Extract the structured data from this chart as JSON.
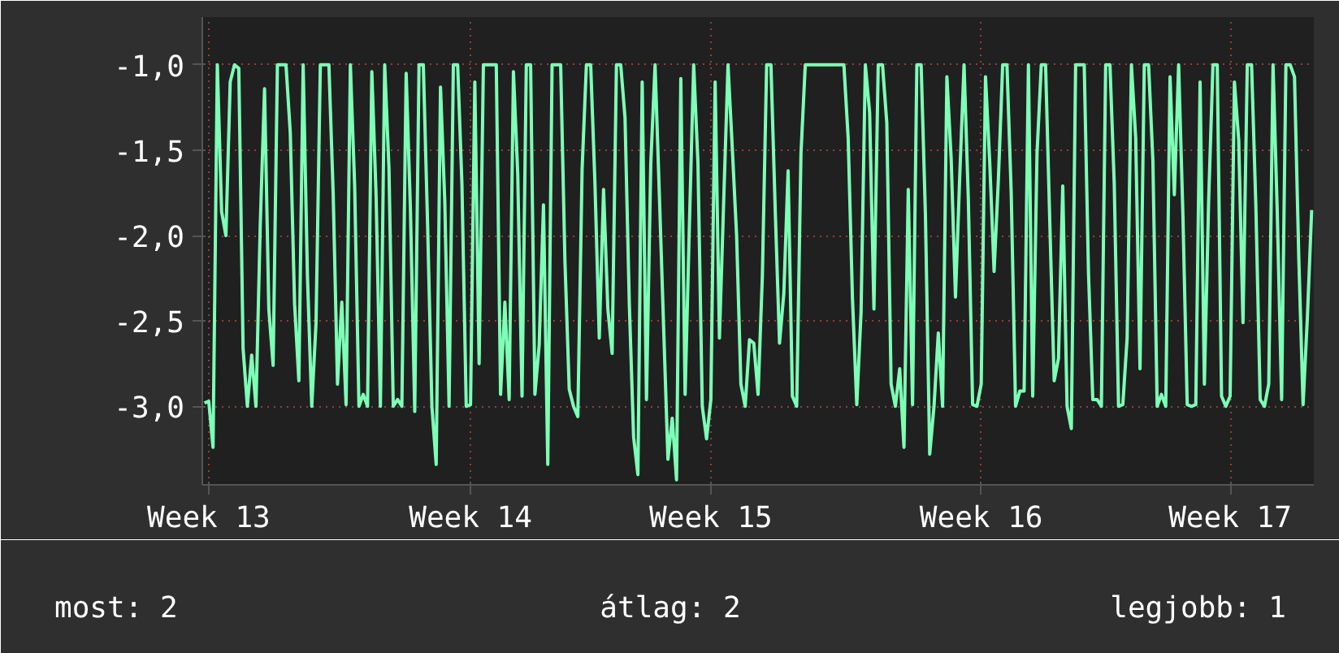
{
  "chart_data": {
    "type": "line",
    "color": "#7dffb6",
    "grid": true,
    "marker": "none",
    "line_style": "solid",
    "ylim": [
      -3.46,
      -0.72
    ],
    "yticks": [
      {
        "value": -3.0,
        "label": "-3,0"
      },
      {
        "value": -2.5,
        "label": "-2,5"
      },
      {
        "value": -2.0,
        "label": "-2,0"
      },
      {
        "value": -1.5,
        "label": "-1,5"
      },
      {
        "value": -1.0,
        "label": "-1,0"
      }
    ],
    "annotations": [
      "most: 2",
      "átlag: 2",
      "legjobb: 1"
    ],
    "categories": [
      null,
      "Week 13",
      null,
      null,
      null,
      null,
      null,
      null,
      null,
      null,
      null,
      null,
      null,
      null,
      null,
      null,
      null,
      null,
      null,
      null,
      null,
      null,
      null,
      null,
      null,
      null,
      null,
      null,
      null,
      null,
      null,
      null,
      null,
      null,
      null,
      null,
      null,
      null,
      null,
      null,
      null,
      null,
      null,
      null,
      null,
      null,
      null,
      null,
      null,
      null,
      null,
      null,
      null,
      null,
      null,
      null,
      null,
      null,
      null,
      null,
      null,
      null,
      "Week 14",
      null,
      null,
      null,
      null,
      null,
      null,
      null,
      null,
      null,
      null,
      null,
      null,
      null,
      null,
      null,
      null,
      null,
      null,
      null,
      null,
      null,
      null,
      null,
      null,
      null,
      null,
      null,
      null,
      null,
      null,
      null,
      null,
      null,
      null,
      null,
      null,
      null,
      null,
      null,
      null,
      null,
      null,
      null,
      null,
      null,
      null,
      null,
      null,
      null,
      null,
      null,
      null,
      null,
      null,
      null,
      "Week 15",
      null,
      null,
      null,
      null,
      null,
      null,
      null,
      null,
      null,
      null,
      null,
      null,
      null,
      null,
      null,
      null,
      null,
      null,
      null,
      null,
      null,
      null,
      null,
      null,
      null,
      null,
      null,
      null,
      null,
      null,
      null,
      null,
      null,
      null,
      null,
      null,
      null,
      null,
      null,
      null,
      null,
      null,
      null,
      null,
      null,
      null,
      null,
      null,
      null,
      null,
      null,
      null,
      null,
      null,
      null,
      null,
      null,
      null,
      null,
      null,
      null,
      null,
      "Week 16",
      null,
      null,
      null,
      null,
      null,
      null,
      null,
      null,
      null,
      null,
      null,
      null,
      null,
      null,
      null,
      null,
      null,
      null,
      null,
      null,
      null,
      null,
      null,
      null,
      null,
      null,
      null,
      null,
      null,
      null,
      null,
      null,
      null,
      null,
      null,
      null,
      null,
      null,
      null,
      null,
      null,
      null,
      null,
      null,
      null,
      null,
      null,
      null,
      null,
      null,
      null,
      null,
      null,
      null,
      null,
      null,
      null,
      "Week 17",
      null,
      null,
      null,
      null,
      null,
      null,
      null,
      null,
      null,
      null,
      null,
      null,
      null,
      null,
      null,
      null,
      null,
      null,
      null
    ],
    "values": [
      -2.98,
      -2.97,
      -3.24,
      -1.0,
      -1.86,
      -2.0,
      -1.1,
      -1.0,
      -1.02,
      -2.66,
      -3.0,
      -2.7,
      -3.0,
      -1.94,
      -1.14,
      -2.43,
      -2.76,
      -1.0,
      -1.0,
      -1.0,
      -1.4,
      -2.4,
      -2.85,
      -1.0,
      -2.24,
      -3.0,
      -2.51,
      -1.0,
      -1.0,
      -1.0,
      -1.76,
      -2.87,
      -2.39,
      -2.99,
      -1.0,
      -1.71,
      -3.0,
      -2.93,
      -3.0,
      -1.04,
      -1.77,
      -3.0,
      -1.0,
      -1.61,
      -3.0,
      -2.96,
      -3.0,
      -1.05,
      -1.85,
      -3.03,
      -1.0,
      -1.0,
      -1.94,
      -3.0,
      -3.34,
      -1.13,
      -1.8,
      -3.0,
      -1.0,
      -1.0,
      -1.7,
      -3.0,
      -2.99,
      -1.1,
      -2.75,
      -1.0,
      -1.0,
      -1.0,
      -1.0,
      -2.93,
      -2.39,
      -2.96,
      -1.04,
      -1.64,
      -2.94,
      -1.0,
      -1.0,
      -2.93,
      -2.64,
      -1.82,
      -3.34,
      -1.0,
      -1.0,
      -1.0,
      -2.15,
      -2.9,
      -3.0,
      -3.06,
      -1.61,
      -1.0,
      -1.0,
      -1.7,
      -2.6,
      -1.73,
      -2.43,
      -2.69,
      -1.0,
      -1.0,
      -1.31,
      -2.4,
      -3.18,
      -3.4,
      -1.1,
      -2.96,
      -1.58,
      -1.0,
      -1.76,
      -2.54,
      -3.31,
      -3.07,
      -3.43,
      -1.08,
      -2.93,
      -1.94,
      -1.0,
      -1.58,
      -3.0,
      -3.19,
      -2.96,
      -1.1,
      -2.6,
      -1.79,
      -1.0,
      -1.49,
      -2.0,
      -2.87,
      -3.0,
      -2.61,
      -2.63,
      -2.93,
      -2.24,
      -1.0,
      -1.0,
      -1.85,
      -2.63,
      -2.34,
      -1.62,
      -2.94,
      -3.0,
      -1.52,
      -1.0,
      -1.0,
      -1.0,
      -1.0,
      -1.0,
      -1.0,
      -1.0,
      -1.0,
      -1.0,
      -1.0,
      -1.43,
      -2.37,
      -2.99,
      -2.45,
      -1.0,
      -1.28,
      -2.43,
      -1.0,
      -1.0,
      -1.34,
      -2.87,
      -3.0,
      -2.78,
      -3.24,
      -1.73,
      -2.99,
      -1.0,
      -1.0,
      -1.88,
      -3.28,
      -3.0,
      -2.57,
      -3.0,
      -1.07,
      -1.55,
      -2.36,
      -1.65,
      -1.0,
      -1.79,
      -2.99,
      -3.0,
      -2.87,
      -1.07,
      -1.58,
      -2.21,
      -1.67,
      -1.0,
      -1.0,
      -1.76,
      -3.0,
      -2.91,
      -2.91,
      -1.0,
      -2.94,
      -1.52,
      -1.0,
      -1.0,
      -1.94,
      -2.85,
      -2.72,
      -1.71,
      -3.0,
      -3.13,
      -1.0,
      -1.0,
      -1.0,
      -2.22,
      -2.96,
      -2.96,
      -3.0,
      -1.0,
      -1.0,
      -1.7,
      -3.0,
      -2.99,
      -2.6,
      -1.0,
      -1.43,
      -2.78,
      -1.0,
      -1.0,
      -1.56,
      -3.0,
      -2.93,
      -3.0,
      -1.07,
      -1.76,
      -1.0,
      -1.88,
      -2.99,
      -3.0,
      -2.99,
      -1.1,
      -2.87,
      -1.79,
      -1.0,
      -1.0,
      -2.94,
      -3.0,
      -2.94,
      -1.1,
      -1.44,
      -2.51,
      -1.0,
      -1.0,
      -1.83,
      -2.96,
      -3.0,
      -2.87,
      -1.0,
      -1.88,
      -2.96,
      -1.0,
      -1.0,
      -1.07,
      -2.13,
      -2.99,
      -2.48,
      -1.85
    ]
  }
}
